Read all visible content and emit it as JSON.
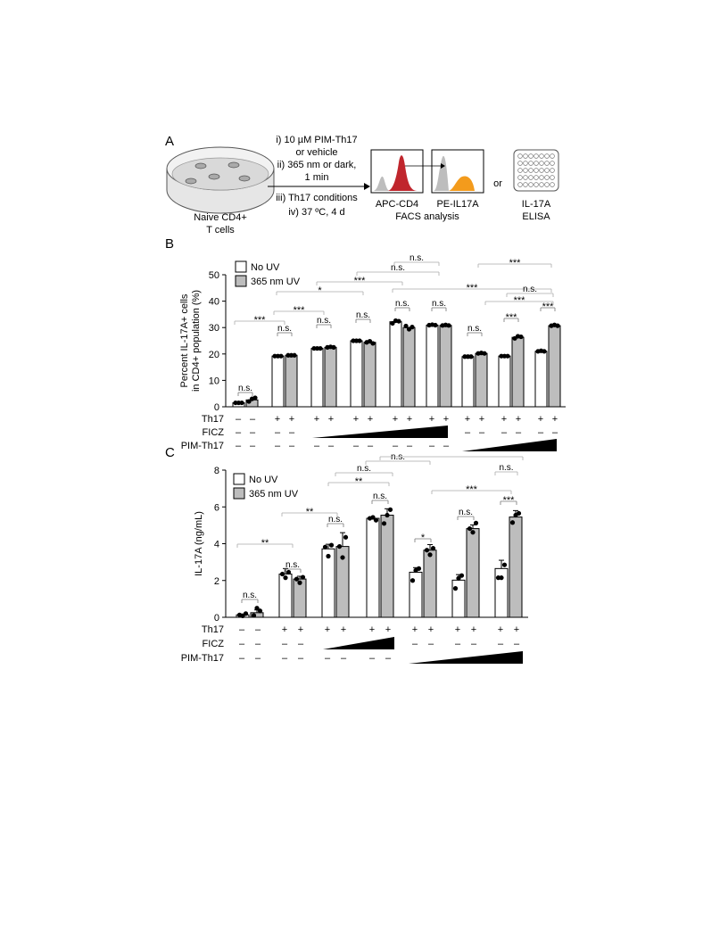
{
  "panel_a": {
    "letter": "A",
    "steps": [
      "i) 10 µM PIM-Th17",
      "or vehicle",
      "ii) 365 nm or dark,",
      "1 min",
      "iii) Th17 conditions",
      "iv) 37 ºC, 4 d"
    ],
    "dish_label": [
      "Naive CD4+",
      "T cells"
    ],
    "facs_label_1": "APC-CD4",
    "facs_label_2": "PE-IL17A",
    "facs_caption": "FACS analysis",
    "or_label": "or",
    "elisa_label": [
      "IL-17A",
      "ELISA"
    ],
    "colors": {
      "red": "#c0262d",
      "orange": "#f39b1c",
      "gray": "#bdbdbd"
    }
  },
  "panel_b": {
    "letter": "B",
    "row_labels": [
      "Th17",
      "FICZ",
      "PIM-Th17"
    ],
    "row_values": [
      [
        "–",
        "–",
        "+",
        "+",
        "+",
        "+",
        "+",
        "+",
        "+",
        "+",
        "+",
        "+",
        "+",
        "+",
        "+",
        "+",
        "+",
        "+"
      ],
      [
        "–",
        "–",
        "–",
        "–",
        "",
        "",
        "",
        "",
        "",
        "",
        "",
        "",
        "–",
        "–",
        "–",
        "–",
        "–",
        "–"
      ],
      [
        "–",
        "–",
        "–",
        "–",
        "–",
        "–",
        "–",
        "–",
        "–",
        "–",
        "–",
        "–",
        "",
        "",
        "",
        "",
        "",
        ""
      ]
    ]
  },
  "panel_c": {
    "letter": "C",
    "row_labels": [
      "Th17",
      "FICZ",
      "PIM-Th17"
    ],
    "row_values": [
      [
        "–",
        "–",
        "+",
        "+",
        "+",
        "+",
        "+",
        "+",
        "+",
        "+",
        "+",
        "+",
        "+",
        "+"
      ],
      [
        "–",
        "–",
        "–",
        "–",
        "",
        "",
        "",
        "",
        "–",
        "–",
        "–",
        "–",
        "–",
        "–"
      ],
      [
        "–",
        "–",
        "–",
        "–",
        "–",
        "–",
        "–",
        "–",
        "",
        "",
        "",
        "",
        "",
        ""
      ]
    ]
  },
  "chart_data": [
    {
      "type": "bar",
      "ylabel": "Percent IL-17A+ cells in CD4+ population (%)",
      "ylim": [
        0,
        50
      ],
      "yticks": [
        "0",
        "10",
        "20",
        "30",
        "40",
        "50"
      ],
      "legend": [
        "No UV",
        "365 nm UV"
      ],
      "legend_position": "top-left",
      "grid": false,
      "series": [
        {
          "name": "No UV",
          "values": [
            1.5,
            19.2,
            22.1,
            25.0,
            32.2,
            30.9,
            19.0,
            19.2,
            21.0
          ]
        },
        {
          "name": "365 nm UV",
          "values": [
            2.6,
            19.5,
            22.5,
            24.4,
            30.0,
            30.8,
            20.2,
            26.3,
            30.7
          ]
        }
      ],
      "significance": [
        {
          "label": "n.s."
        },
        {
          "label": "n.s."
        },
        {
          "label": "n.s."
        },
        {
          "label": "n.s."
        },
        {
          "label": "n.s."
        },
        {
          "label": "n.s."
        },
        {
          "label": "n.s."
        },
        {
          "label": "***"
        },
        {
          "label": "***"
        },
        {
          "label": "***"
        },
        {
          "label": "***"
        },
        {
          "label": "*"
        },
        {
          "label": "***"
        },
        {
          "label": "n.s."
        },
        {
          "label": "n.s."
        },
        {
          "label": "***"
        },
        {
          "label": "***"
        },
        {
          "label": "n.s."
        },
        {
          "label": "***"
        }
      ]
    },
    {
      "type": "bar",
      "ylabel": "IL-17A (ng/mL)",
      "ylim": [
        0,
        8
      ],
      "yticks": [
        "0",
        "2",
        "4",
        "6",
        "8"
      ],
      "legend": [
        "No UV",
        "365 nm UV"
      ],
      "legend_position": "top-left",
      "grid": false,
      "series": [
        {
          "name": "No UV",
          "values": [
            0.13,
            2.35,
            3.72,
            5.38,
            2.45,
            2.02,
            2.65
          ]
        },
        {
          "name": "365 nm UV",
          "values": [
            0.25,
            2.08,
            3.85,
            5.55,
            3.65,
            4.82,
            5.45
          ]
        }
      ],
      "significance": [
        {
          "label": "n.s."
        },
        {
          "label": "n.s."
        },
        {
          "label": "n.s."
        },
        {
          "label": "n.s."
        },
        {
          "label": "*"
        },
        {
          "label": "n.s."
        },
        {
          "label": "***"
        },
        {
          "label": "**"
        },
        {
          "label": "**"
        },
        {
          "label": "**"
        },
        {
          "label": "n.s."
        },
        {
          "label": "n.s."
        },
        {
          "label": "***"
        },
        {
          "label": "n.s."
        }
      ]
    }
  ]
}
